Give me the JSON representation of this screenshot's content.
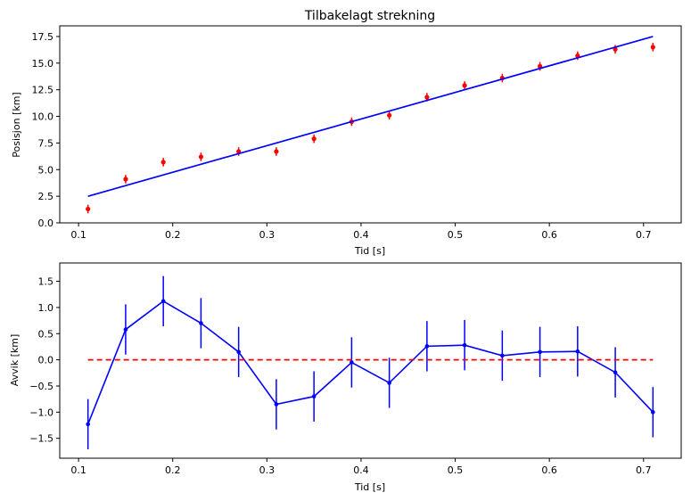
{
  "chart_data": [
    {
      "type": "scatter",
      "title": "Tilbakelagt strekning",
      "xlabel": "Tid [s]",
      "ylabel": "Posisjon [km]",
      "xlim": [
        0.08,
        0.74
      ],
      "ylim": [
        0,
        18.5
      ],
      "xticks": [
        "0.1",
        "0.2",
        "0.3",
        "0.4",
        "0.5",
        "0.6",
        "0.7"
      ],
      "yticks": [
        "0.0",
        "2.5",
        "5.0",
        "7.5",
        "10.0",
        "12.5",
        "15.0",
        "17.5"
      ],
      "grid": false,
      "colors": {
        "points": "#ff0000",
        "fit": "#0000ff"
      },
      "series": [
        {
          "kind": "errorbar-points",
          "x": [
            0.11,
            0.15,
            0.19,
            0.23,
            0.27,
            0.31,
            0.35,
            0.39,
            0.43,
            0.47,
            0.51,
            0.55,
            0.59,
            0.63,
            0.67,
            0.71
          ],
          "y": [
            1.3,
            4.1,
            5.7,
            6.2,
            6.7,
            6.7,
            7.9,
            9.5,
            10.1,
            11.8,
            12.9,
            13.6,
            14.7,
            15.7,
            16.3,
            16.5
          ],
          "yerr": 0.4
        },
        {
          "kind": "line",
          "x": [
            0.11,
            0.71
          ],
          "y": [
            2.5,
            17.5
          ]
        }
      ]
    },
    {
      "type": "line",
      "title": "",
      "xlabel": "Tid [s]",
      "ylabel": "Avvik [km]",
      "xlim": [
        0.08,
        0.74
      ],
      "ylim": [
        -1.88,
        1.85
      ],
      "xticks": [
        "0.1",
        "0.2",
        "0.3",
        "0.4",
        "0.5",
        "0.6",
        "0.7"
      ],
      "yticks": [
        "1.5",
        "1.0",
        "0.5",
        "0.0",
        "−0.5",
        "−1.0",
        "−1.5"
      ],
      "grid": false,
      "colors": {
        "residual": "#0000ff",
        "zero": "#ff0000"
      },
      "series": [
        {
          "kind": "errorbar-line",
          "x": [
            0.11,
            0.15,
            0.19,
            0.23,
            0.27,
            0.31,
            0.35,
            0.39,
            0.43,
            0.47,
            0.51,
            0.55,
            0.59,
            0.63,
            0.67,
            0.71
          ],
          "y": [
            -1.23,
            0.58,
            1.12,
            0.7,
            0.15,
            -0.85,
            -0.7,
            -0.05,
            -0.44,
            0.26,
            0.28,
            0.08,
            0.15,
            0.16,
            -0.24,
            -1.0
          ],
          "yerr": 0.48
        },
        {
          "kind": "dashed-line",
          "x": [
            0.11,
            0.71
          ],
          "y": [
            0,
            0
          ]
        }
      ]
    }
  ]
}
